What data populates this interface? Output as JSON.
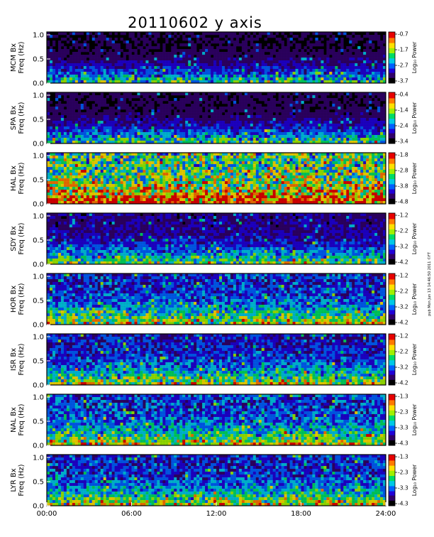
{
  "title": "20110602 y axis",
  "side_note": "pub Mon Jun 13 14:46:50 2011 ©FT",
  "x_ticks": [
    "00:00",
    "06:00",
    "12:00",
    "18:00",
    "24:00"
  ],
  "y_ticks": [
    "0.0",
    "0.5",
    "1.0"
  ],
  "colorbar_label": "Log₁₀ Power",
  "colormap": [
    "#000000",
    "#30006a",
    "#2000d8",
    "#0060ff",
    "#00c8e6",
    "#00dc64",
    "#a0f000",
    "#ffe000",
    "#ff7800",
    "#e60000"
  ],
  "chart_data": [
    {
      "type": "heatmap",
      "station": "MCM",
      "ylabel_1": "MCM Bx",
      "ylabel_2": "Freq (Hz)",
      "xlim": [
        0,
        24
      ],
      "ylim": [
        0,
        1.0
      ],
      "cbar_ticks": [
        "-0.7",
        "-1.7",
        "-2.7",
        "-3.7"
      ],
      "level": 0.1
    },
    {
      "type": "heatmap",
      "station": "SPA",
      "ylabel_1": "SPA Bx",
      "ylabel_2": "Freq (Hz)",
      "xlim": [
        0,
        24
      ],
      "ylim": [
        0,
        1.0
      ],
      "cbar_ticks": [
        "-0.4",
        "-1.4",
        "-2.4",
        "-3.4"
      ],
      "level": 0.12
    },
    {
      "type": "heatmap",
      "station": "HAL",
      "ylabel_1": "HAL Bx",
      "ylabel_2": "Freq (Hz)",
      "xlim": [
        0,
        24
      ],
      "ylim": [
        0,
        1.0
      ],
      "cbar_ticks": [
        "-1.8",
        "-2.8",
        "-3.8",
        "-4.8"
      ],
      "level": 0.55
    },
    {
      "type": "heatmap",
      "station": "SDY",
      "ylabel_1": "SDY Bx",
      "ylabel_2": "Freq (Hz)",
      "xlim": [
        0,
        24
      ],
      "ylim": [
        0,
        1.0
      ],
      "cbar_ticks": [
        "-1.2",
        "-2.2",
        "-3.2",
        "-4.2"
      ],
      "level": 0.18
    },
    {
      "type": "heatmap",
      "station": "HOR",
      "ylabel_1": "HOR Bx",
      "ylabel_2": "Freq (Hz)",
      "xlim": [
        0,
        24
      ],
      "ylim": [
        0,
        1.0
      ],
      "cbar_ticks": [
        "-1.2",
        "-2.2",
        "-3.2",
        "-4.2"
      ],
      "level": 0.28
    },
    {
      "type": "heatmap",
      "station": "ISR",
      "ylabel_1": "ISR Bx",
      "ylabel_2": "Freq (Hz)",
      "xlim": [
        0,
        24
      ],
      "ylim": [
        0,
        1.0
      ],
      "cbar_ticks": [
        "-1.2",
        "-2.2",
        "-3.2",
        "-4.2"
      ],
      "level": 0.26
    },
    {
      "type": "heatmap",
      "station": "NAL",
      "ylabel_1": "NAL Bx",
      "ylabel_2": "Freq (Hz)",
      "xlim": [
        0,
        24
      ],
      "ylim": [
        0,
        1.0
      ],
      "cbar_ticks": [
        "-1.3",
        "-2.3",
        "-3.3",
        "-4.3"
      ],
      "level": 0.3
    },
    {
      "type": "heatmap",
      "station": "LYR",
      "ylabel_1": "LYR Bx",
      "ylabel_2": "Freq (Hz)",
      "xlim": [
        0,
        24
      ],
      "ylim": [
        0,
        1.0
      ],
      "cbar_ticks": [
        "-1.3",
        "-2.3",
        "-3.3",
        "-4.3"
      ],
      "level": 0.28
    }
  ]
}
